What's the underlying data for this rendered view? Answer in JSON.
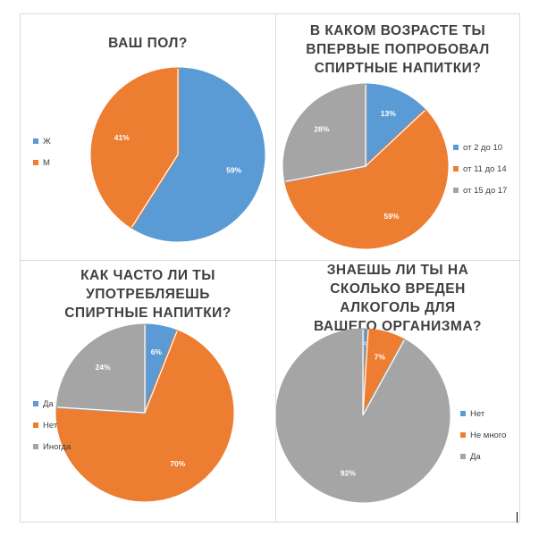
{
  "colors": {
    "blue": "#5b9bd5",
    "orange": "#ed7d31",
    "gray": "#a5a5a5"
  },
  "chart_data": [
    {
      "type": "pie",
      "title": "ВАШ ПОЛ?",
      "categories": [
        "Ж",
        "М"
      ],
      "values": [
        59,
        41
      ],
      "labels": [
        "59%",
        "41%"
      ],
      "legend_position": "left"
    },
    {
      "type": "pie",
      "title": "В КАКОМ ВОЗРАСТЕ ТЫ ВПЕРВЫЕ ПОПРОБОВАЛ СПИРТНЫЕ НАПИТКИ?",
      "categories": [
        "от 2 до 10",
        "от 11 до 14",
        "от 15 до 17"
      ],
      "values": [
        13,
        59,
        28
      ],
      "labels": [
        "13%",
        "59%",
        "28%"
      ],
      "legend_position": "right"
    },
    {
      "type": "pie",
      "title": "КАК ЧАСТО ЛИ ТЫ УПОТРЕБЛЯЕШЬ СПИРТНЫЕ НАПИТКИ?",
      "categories": [
        "Да",
        "Нет",
        "Иногда"
      ],
      "values": [
        6,
        70,
        24
      ],
      "labels": [
        "6%",
        "70%",
        "24%"
      ],
      "legend_position": "left"
    },
    {
      "type": "pie",
      "title": "ЗНАЕШЬ ЛИ ТЫ НА СКОЛЬКО ВРЕДЕН АЛКОГОЛЬ ДЛЯ ВАШЕГО ОРГАНИЗМА?",
      "categories": [
        "Нет",
        "Не много",
        "Да"
      ],
      "values": [
        1,
        7,
        92
      ],
      "labels": [
        "1%",
        "7%",
        "92%"
      ],
      "legend_position": "right"
    }
  ]
}
